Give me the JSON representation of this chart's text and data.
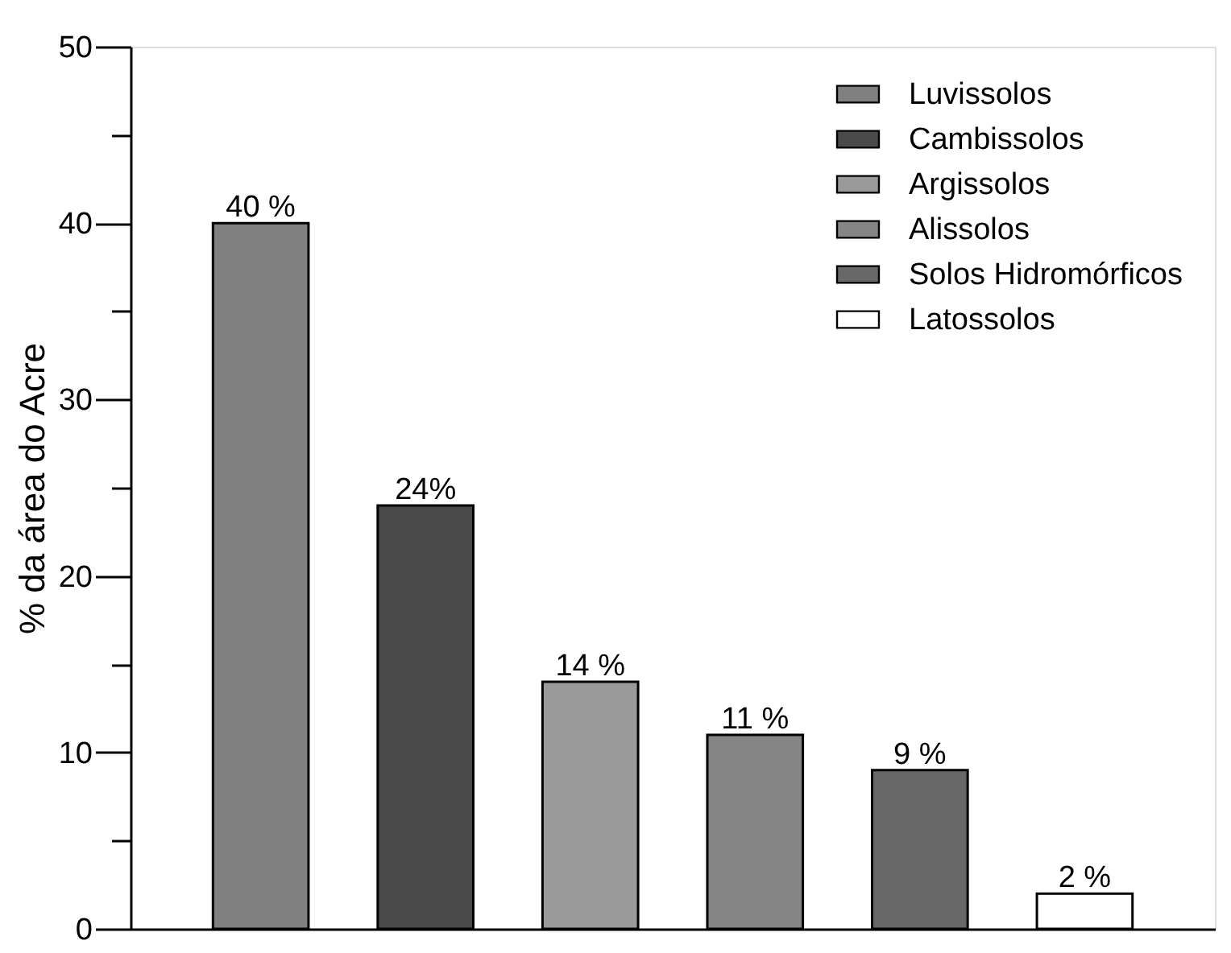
{
  "chart_data": {
    "type": "bar",
    "ylabel": "% da área do Acre",
    "categories": [
      null,
      null,
      null,
      null,
      null,
      null
    ],
    "series": [
      {
        "name": "Luvissolos",
        "color": "#808080",
        "values": [
          40,
          null,
          null,
          null,
          null,
          null
        ],
        "value_labels": [
          "40 %",
          null,
          null,
          null,
          null,
          null
        ]
      },
      {
        "name": "Cambissolos",
        "color": "#4a4a4a",
        "values": [
          null,
          24,
          null,
          null,
          null,
          null
        ],
        "value_labels": [
          null,
          "24%",
          null,
          null,
          null,
          null
        ]
      },
      {
        "name": "Argissolos",
        "color": "#9a9a9a",
        "values": [
          null,
          null,
          14,
          null,
          null,
          null
        ],
        "value_labels": [
          null,
          null,
          "14 %",
          null,
          null,
          null
        ]
      },
      {
        "name": "Alissolos",
        "color": "#858585",
        "values": [
          null,
          null,
          null,
          11,
          null,
          null
        ],
        "value_labels": [
          null,
          null,
          null,
          "11 %",
          null,
          null
        ]
      },
      {
        "name": "Solos Hidromórficos",
        "color": "#686868",
        "values": [
          null,
          null,
          null,
          null,
          9,
          null
        ],
        "value_labels": [
          null,
          null,
          null,
          null,
          "9 %",
          null
        ]
      },
      {
        "name": "Latossolos",
        "color": "#ffffff",
        "values": [
          null,
          null,
          null,
          null,
          null,
          2
        ],
        "value_labels": [
          null,
          null,
          null,
          null,
          null,
          "2 %"
        ]
      }
    ],
    "ylim": [
      0,
      50
    ],
    "yticks": [
      0,
      {
        "value": 5,
        "label": null
      },
      10,
      {
        "value": 15,
        "label": null
      },
      20,
      {
        "value": 25,
        "label": null
      },
      30,
      {
        "value": 35,
        "label": null
      },
      40,
      {
        "value": 45,
        "label": null
      },
      50
    ],
    "grid": false,
    "legend": "top right",
    "tick_labels": "y"
  }
}
